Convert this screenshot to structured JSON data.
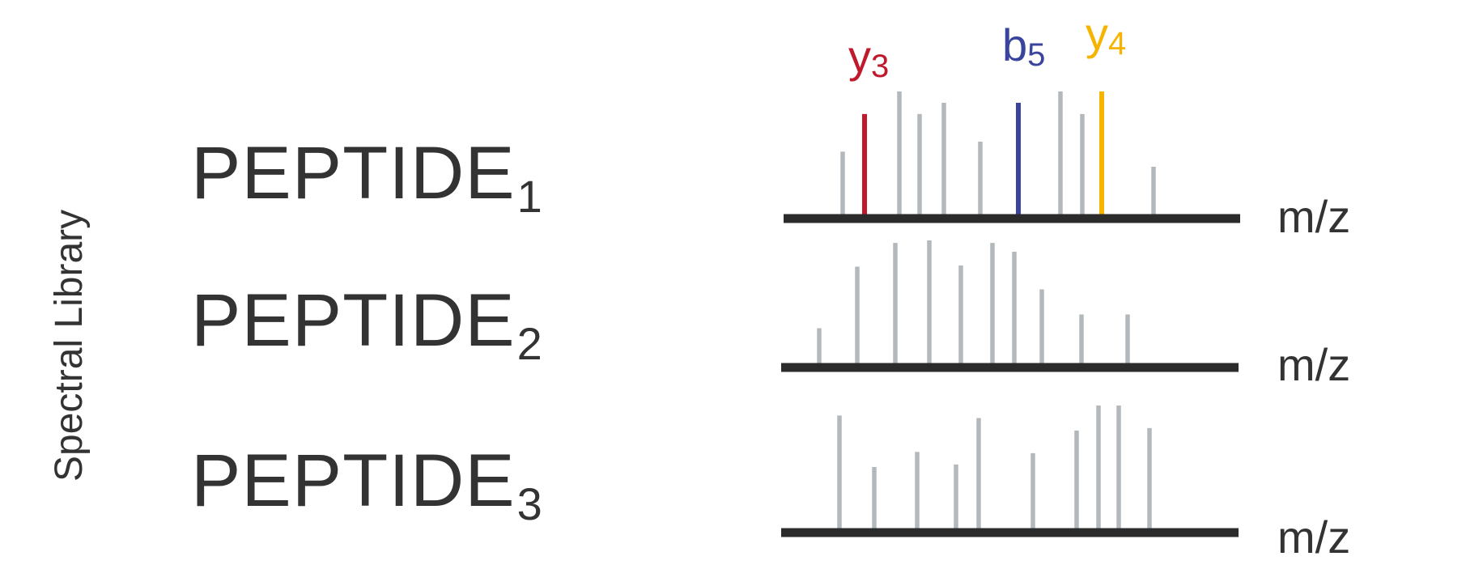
{
  "axis_title": "Spectral Library",
  "x_unit": "m/z",
  "colors": {
    "peak": "#b2b8bb",
    "axis": "#2b2b2b",
    "y3": "#c0192c",
    "b5": "#3b449c",
    "y4": "#f5b400",
    "text": "#333333"
  },
  "spectra": [
    {
      "name": "PEPTIDE",
      "index": "1",
      "peaks": [
        {
          "mz": 53,
          "intensity": 0.52
        },
        {
          "mz": 80,
          "intensity": 0.82,
          "ion": "y",
          "num": "3",
          "color_key": "y3"
        },
        {
          "mz": 123,
          "intensity": 1.0
        },
        {
          "mz": 148,
          "intensity": 0.82
        },
        {
          "mz": 178,
          "intensity": 0.91
        },
        {
          "mz": 223,
          "intensity": 0.6
        },
        {
          "mz": 270,
          "intensity": 0.91,
          "ion": "b",
          "num": "5",
          "color_key": "b5"
        },
        {
          "mz": 322,
          "intensity": 1.0
        },
        {
          "mz": 349,
          "intensity": 0.82
        },
        {
          "mz": 373,
          "intensity": 1.0,
          "ion": "y",
          "num": "4",
          "color_key": "y4"
        },
        {
          "mz": 437,
          "intensity": 0.4
        }
      ]
    },
    {
      "name": "PEPTIDE",
      "index": "2",
      "peaks": [
        {
          "mz": 27,
          "intensity": 0.3
        },
        {
          "mz": 74,
          "intensity": 0.79
        },
        {
          "mz": 121,
          "intensity": 0.98
        },
        {
          "mz": 163,
          "intensity": 1.0
        },
        {
          "mz": 202,
          "intensity": 0.8
        },
        {
          "mz": 241,
          "intensity": 0.98
        },
        {
          "mz": 268,
          "intensity": 0.91
        },
        {
          "mz": 302,
          "intensity": 0.61
        },
        {
          "mz": 351,
          "intensity": 0.41
        },
        {
          "mz": 408,
          "intensity": 0.41
        }
      ]
    },
    {
      "name": "PEPTIDE",
      "index": "3",
      "peaks": [
        {
          "mz": 52,
          "intensity": 0.92
        },
        {
          "mz": 95,
          "intensity": 0.51
        },
        {
          "mz": 148,
          "intensity": 0.63
        },
        {
          "mz": 196,
          "intensity": 0.53
        },
        {
          "mz": 224,
          "intensity": 0.9
        },
        {
          "mz": 291,
          "intensity": 0.62
        },
        {
          "mz": 345,
          "intensity": 0.8
        },
        {
          "mz": 372,
          "intensity": 1.0
        },
        {
          "mz": 397,
          "intensity": 1.0
        },
        {
          "mz": 435,
          "intensity": 0.82
        }
      ]
    }
  ]
}
